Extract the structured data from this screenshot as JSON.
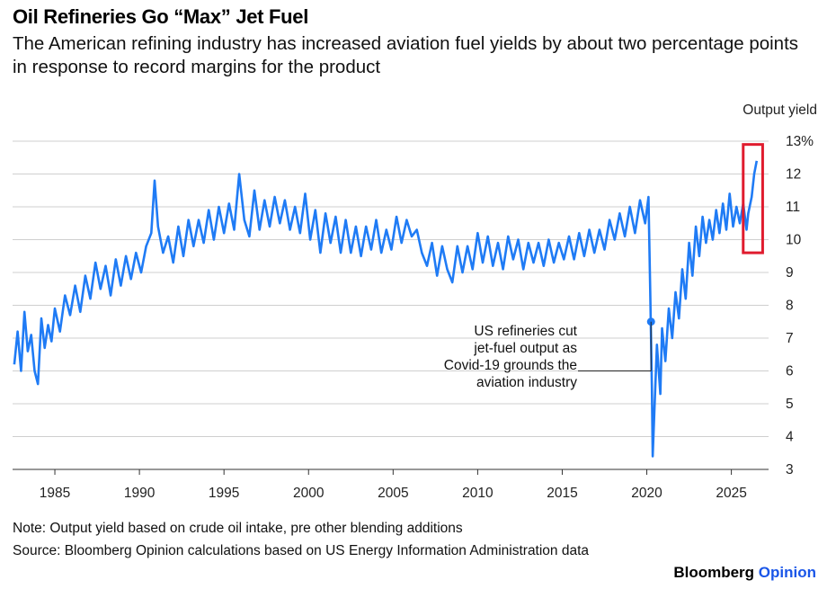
{
  "title": "Oil Refineries Go “Max” Jet Fuel",
  "subtitle": "The American refining industry has increased aviation fuel yields by about two percentage points in response to record margins for the product",
  "note": "Note: Output yield based on crude oil intake, pre other blending additions",
  "source": "Source: Bloomberg Opinion calculations based on US Energy Information Administration data",
  "brand": {
    "name": "Bloomberg",
    "product": "Opinion"
  },
  "colors": {
    "line": "#1f7bf5",
    "highlight": "#e01c2e",
    "grid": "#cfcfcf"
  },
  "chart_data": {
    "type": "line",
    "ylabel": "Output yield",
    "y_unit_top_label": "13%",
    "ylim": [
      2.6,
      13
    ],
    "xlim": [
      1982.5,
      2027.2
    ],
    "y_ticks": [
      13,
      12,
      11,
      10,
      9,
      8,
      7,
      6,
      5,
      4,
      3
    ],
    "y_tick_labels": [
      "13%",
      "12",
      "11",
      "10",
      "9",
      "8",
      "7",
      "6",
      "5",
      "4",
      "3"
    ],
    "x_ticks": [
      1985,
      1990,
      1995,
      2000,
      2005,
      2010,
      2015,
      2020,
      2025
    ],
    "grid": true,
    "series": [
      {
        "values": [
          [
            1982.6,
            6.2
          ],
          [
            1982.8,
            7.2
          ],
          [
            1983.0,
            6.0
          ],
          [
            1983.2,
            7.8
          ],
          [
            1983.4,
            6.6
          ],
          [
            1983.6,
            7.1
          ],
          [
            1983.8,
            6.0
          ],
          [
            1984.0,
            5.6
          ],
          [
            1984.2,
            7.6
          ],
          [
            1984.4,
            6.7
          ],
          [
            1984.6,
            7.4
          ],
          [
            1984.8,
            6.9
          ],
          [
            1985.0,
            7.9
          ],
          [
            1985.3,
            7.2
          ],
          [
            1985.6,
            8.3
          ],
          [
            1985.9,
            7.7
          ],
          [
            1986.2,
            8.6
          ],
          [
            1986.5,
            7.8
          ],
          [
            1986.8,
            8.9
          ],
          [
            1987.1,
            8.2
          ],
          [
            1987.4,
            9.3
          ],
          [
            1987.7,
            8.5
          ],
          [
            1988.0,
            9.2
          ],
          [
            1988.3,
            8.3
          ],
          [
            1988.6,
            9.4
          ],
          [
            1988.9,
            8.6
          ],
          [
            1989.2,
            9.5
          ],
          [
            1989.5,
            8.8
          ],
          [
            1989.8,
            9.6
          ],
          [
            1990.1,
            9.0
          ],
          [
            1990.4,
            9.8
          ],
          [
            1990.7,
            10.2
          ],
          [
            1990.9,
            11.8
          ],
          [
            1991.1,
            10.4
          ],
          [
            1991.4,
            9.6
          ],
          [
            1991.7,
            10.1
          ],
          [
            1992.0,
            9.3
          ],
          [
            1992.3,
            10.4
          ],
          [
            1992.6,
            9.5
          ],
          [
            1992.9,
            10.6
          ],
          [
            1993.2,
            9.8
          ],
          [
            1993.5,
            10.6
          ],
          [
            1993.8,
            9.9
          ],
          [
            1994.1,
            10.9
          ],
          [
            1994.4,
            10.0
          ],
          [
            1994.7,
            11.0
          ],
          [
            1995.0,
            10.2
          ],
          [
            1995.3,
            11.1
          ],
          [
            1995.6,
            10.3
          ],
          [
            1995.9,
            12.0
          ],
          [
            1996.2,
            10.6
          ],
          [
            1996.5,
            10.1
          ],
          [
            1996.8,
            11.5
          ],
          [
            1997.1,
            10.3
          ],
          [
            1997.4,
            11.2
          ],
          [
            1997.7,
            10.4
          ],
          [
            1998.0,
            11.3
          ],
          [
            1998.3,
            10.5
          ],
          [
            1998.6,
            11.2
          ],
          [
            1998.9,
            10.3
          ],
          [
            1999.2,
            11.0
          ],
          [
            1999.5,
            10.2
          ],
          [
            1999.8,
            11.4
          ],
          [
            2000.1,
            10.0
          ],
          [
            2000.4,
            10.9
          ],
          [
            2000.7,
            9.6
          ],
          [
            2001.0,
            10.8
          ],
          [
            2001.3,
            9.9
          ],
          [
            2001.6,
            10.7
          ],
          [
            2001.9,
            9.6
          ],
          [
            2002.2,
            10.6
          ],
          [
            2002.5,
            9.6
          ],
          [
            2002.8,
            10.4
          ],
          [
            2003.1,
            9.5
          ],
          [
            2003.4,
            10.4
          ],
          [
            2003.7,
            9.7
          ],
          [
            2004.0,
            10.6
          ],
          [
            2004.3,
            9.6
          ],
          [
            2004.6,
            10.3
          ],
          [
            2004.9,
            9.7
          ],
          [
            2005.2,
            10.7
          ],
          [
            2005.5,
            9.9
          ],
          [
            2005.8,
            10.6
          ],
          [
            2006.1,
            10.1
          ],
          [
            2006.4,
            10.3
          ],
          [
            2006.7,
            9.6
          ],
          [
            2007.0,
            9.2
          ],
          [
            2007.3,
            9.9
          ],
          [
            2007.6,
            8.9
          ],
          [
            2007.9,
            9.8
          ],
          [
            2008.2,
            9.1
          ],
          [
            2008.5,
            8.7
          ],
          [
            2008.8,
            9.8
          ],
          [
            2009.1,
            9.0
          ],
          [
            2009.4,
            9.8
          ],
          [
            2009.7,
            9.1
          ],
          [
            2010.0,
            10.2
          ],
          [
            2010.3,
            9.3
          ],
          [
            2010.6,
            10.1
          ],
          [
            2010.9,
            9.2
          ],
          [
            2011.2,
            9.9
          ],
          [
            2011.5,
            9.1
          ],
          [
            2011.8,
            10.1
          ],
          [
            2012.1,
            9.4
          ],
          [
            2012.4,
            10.0
          ],
          [
            2012.7,
            9.1
          ],
          [
            2013.0,
            9.9
          ],
          [
            2013.3,
            9.3
          ],
          [
            2013.6,
            9.9
          ],
          [
            2013.9,
            9.2
          ],
          [
            2014.2,
            10.0
          ],
          [
            2014.5,
            9.3
          ],
          [
            2014.8,
            9.9
          ],
          [
            2015.1,
            9.4
          ],
          [
            2015.4,
            10.1
          ],
          [
            2015.7,
            9.4
          ],
          [
            2016.0,
            10.2
          ],
          [
            2016.3,
            9.5
          ],
          [
            2016.6,
            10.3
          ],
          [
            2016.9,
            9.6
          ],
          [
            2017.2,
            10.3
          ],
          [
            2017.5,
            9.7
          ],
          [
            2017.8,
            10.6
          ],
          [
            2018.1,
            10.0
          ],
          [
            2018.4,
            10.8
          ],
          [
            2018.7,
            10.1
          ],
          [
            2019.0,
            11.0
          ],
          [
            2019.3,
            10.2
          ],
          [
            2019.6,
            11.2
          ],
          [
            2019.9,
            10.5
          ],
          [
            2020.1,
            11.3
          ],
          [
            2020.2,
            8.5
          ],
          [
            2020.3,
            5.5
          ],
          [
            2020.35,
            3.4
          ],
          [
            2020.45,
            4.8
          ],
          [
            2020.6,
            6.8
          ],
          [
            2020.8,
            5.3
          ],
          [
            2020.9,
            7.3
          ],
          [
            2021.1,
            6.3
          ],
          [
            2021.3,
            7.9
          ],
          [
            2021.5,
            7.0
          ],
          [
            2021.7,
            8.4
          ],
          [
            2021.9,
            7.6
          ],
          [
            2022.1,
            9.1
          ],
          [
            2022.3,
            8.2
          ],
          [
            2022.5,
            9.9
          ],
          [
            2022.7,
            8.9
          ],
          [
            2022.9,
            10.4
          ],
          [
            2023.1,
            9.5
          ],
          [
            2023.3,
            10.7
          ],
          [
            2023.5,
            9.9
          ],
          [
            2023.7,
            10.6
          ],
          [
            2023.9,
            10.0
          ],
          [
            2024.1,
            10.9
          ],
          [
            2024.3,
            10.2
          ],
          [
            2024.5,
            11.1
          ],
          [
            2024.7,
            10.3
          ],
          [
            2024.9,
            11.4
          ],
          [
            2025.1,
            10.4
          ],
          [
            2025.3,
            11.0
          ],
          [
            2025.5,
            10.5
          ],
          [
            2025.7,
            11.1
          ],
          [
            2025.9,
            10.3
          ],
          [
            2026.0,
            10.8
          ],
          [
            2026.2,
            11.3
          ],
          [
            2026.35,
            12.0
          ],
          [
            2026.5,
            12.4
          ]
        ]
      }
    ],
    "annotation": {
      "lines": [
        "US refineries cut",
        "jet-fuel output as",
        "Covid-19 grounds the",
        "aviation industry"
      ],
      "point": [
        2020.25,
        7.5
      ]
    },
    "highlight": {
      "x_range": [
        2025.7,
        2026.85
      ],
      "y_range": [
        9.6,
        12.9
      ]
    }
  }
}
